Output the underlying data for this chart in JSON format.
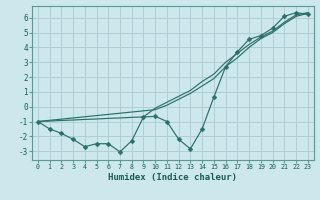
{
  "xlabel": "Humidex (Indice chaleur)",
  "xlim": [
    -0.5,
    23.5
  ],
  "ylim": [
    -3.6,
    6.8
  ],
  "background_color": "#cce8ec",
  "grid_color": "#b0cfd4",
  "line_color": "#2a7068",
  "x_ticks": [
    0,
    1,
    2,
    3,
    4,
    5,
    6,
    7,
    8,
    9,
    10,
    11,
    12,
    13,
    14,
    15,
    16,
    17,
    18,
    19,
    20,
    21,
    22,
    23
  ],
  "y_ticks": [
    -3,
    -2,
    -1,
    0,
    1,
    2,
    3,
    4,
    5,
    6
  ],
  "line1_x": [
    0,
    1,
    2,
    3,
    4,
    5,
    6,
    7,
    8,
    9,
    10,
    11,
    12,
    13,
    14,
    15,
    16,
    17,
    18,
    19,
    20,
    21,
    22,
    23
  ],
  "line1_y": [
    -1.0,
    -1.5,
    -1.8,
    -2.2,
    -2.7,
    -2.5,
    -2.5,
    -3.05,
    -2.3,
    -0.7,
    -0.65,
    -1.0,
    -2.2,
    -2.85,
    -1.5,
    0.65,
    2.7,
    3.7,
    4.55,
    4.8,
    5.3,
    6.1,
    6.35,
    6.25
  ],
  "line2_x": [
    0,
    1,
    2,
    3,
    4,
    5,
    6,
    7,
    8,
    9,
    10,
    11,
    12,
    13,
    14,
    15,
    16,
    17,
    18,
    19,
    20,
    21,
    22,
    23
  ],
  "line2_y": [
    -1.0,
    -0.92,
    -0.84,
    -0.76,
    -0.68,
    -0.6,
    -0.52,
    -0.44,
    -0.36,
    -0.28,
    -0.2,
    0.1,
    0.5,
    0.9,
    1.4,
    1.9,
    2.7,
    3.3,
    4.0,
    4.6,
    5.0,
    5.6,
    6.1,
    6.3
  ],
  "line3_x": [
    0,
    1,
    2,
    3,
    4,
    5,
    6,
    7,
    8,
    9,
    10,
    11,
    12,
    13,
    14,
    15,
    16,
    17,
    18,
    19,
    20,
    21,
    22,
    23
  ],
  "line3_y": [
    -1.0,
    -0.97,
    -0.93,
    -0.9,
    -0.86,
    -0.83,
    -0.79,
    -0.76,
    -0.72,
    -0.69,
    -0.1,
    0.3,
    0.7,
    1.1,
    1.7,
    2.2,
    3.0,
    3.6,
    4.2,
    4.7,
    5.1,
    5.7,
    6.2,
    6.35
  ]
}
